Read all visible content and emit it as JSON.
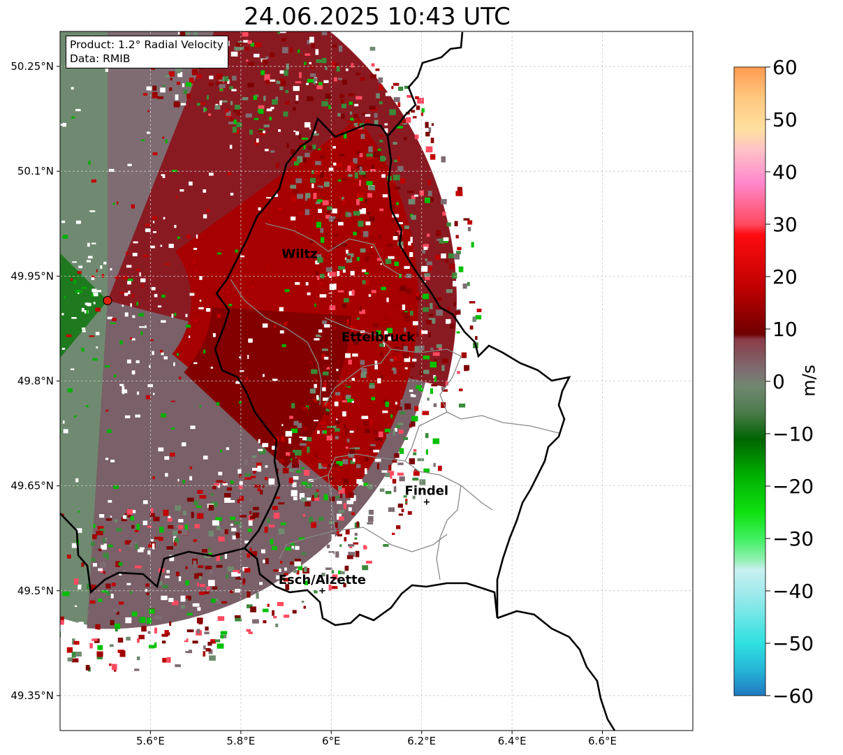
{
  "title": "24.06.2025 10:43 UTC",
  "info_box": {
    "product": "Product: 1.2° Radial Velocity",
    "source": "Data: RMIB"
  },
  "map": {
    "lon_ticks": [
      {
        "value": 5.6,
        "label": "5.6°E"
      },
      {
        "value": 5.8,
        "label": "5.8°E"
      },
      {
        "value": 6.0,
        "label": "6°E"
      },
      {
        "value": 6.2,
        "label": "6.2°E"
      },
      {
        "value": 6.4,
        "label": "6.4°E"
      },
      {
        "value": 6.6,
        "label": "6.6°E"
      }
    ],
    "lat_ticks": [
      {
        "value": 50.25,
        "label": "50.25°N"
      },
      {
        "value": 50.1,
        "label": "50.1°N"
      },
      {
        "value": 49.95,
        "label": "49.95°N"
      },
      {
        "value": 49.8,
        "label": "49.8°N"
      },
      {
        "value": 49.65,
        "label": "49.65°N"
      },
      {
        "value": 49.5,
        "label": "49.5°N"
      },
      {
        "value": 49.35,
        "label": "49.35°N"
      }
    ],
    "extent": {
      "lon_min": 5.4,
      "lon_max": 6.8,
      "lat_min": 49.3,
      "lat_max": 50.3
    },
    "grid": true,
    "radar_site": {
      "lon": 5.505,
      "lat": 49.915,
      "color": "#e02010"
    },
    "cities": [
      {
        "name": "Wiltz",
        "lon": 5.93,
        "lat": 49.966,
        "marker": false
      },
      {
        "name": "Ettelbruck",
        "lon": 6.104,
        "lat": 49.847,
        "marker": false
      },
      {
        "name": "Findel",
        "lon": 6.211,
        "lat": 49.627,
        "marker": true
      },
      {
        "name": "Esch/Alzette",
        "lon": 5.98,
        "lat": 49.5,
        "marker": true
      }
    ]
  },
  "colorbar": {
    "label": "m/s",
    "min": -60,
    "max": 60,
    "ticks": [
      60,
      50,
      40,
      30,
      20,
      10,
      0,
      -10,
      -20,
      -30,
      -40,
      -50,
      -60
    ],
    "tick_labels": [
      "60",
      "50",
      "40",
      "30",
      "20",
      "10",
      "0",
      "−10",
      "−20",
      "−30",
      "−40",
      "−50",
      "−60"
    ],
    "stops": [
      {
        "v": -60,
        "c": "#1f78c0"
      },
      {
        "v": -55,
        "c": "#26b6d8"
      },
      {
        "v": -50,
        "c": "#2ee0e0"
      },
      {
        "v": -42,
        "c": "#90e8ea"
      },
      {
        "v": -36,
        "c": "#c8f0f0"
      },
      {
        "v": -34,
        "c": "#90f0b0"
      },
      {
        "v": -30,
        "c": "#40f060"
      },
      {
        "v": -25,
        "c": "#10e010"
      },
      {
        "v": -18,
        "c": "#00b000"
      },
      {
        "v": -11,
        "c": "#006400"
      },
      {
        "v": -6,
        "c": "#4a7a4a"
      },
      {
        "v": -1,
        "c": "#708870"
      },
      {
        "v": 2,
        "c": "#7d6e72"
      },
      {
        "v": 8,
        "c": "#8a3c48"
      },
      {
        "v": 9,
        "c": "#700000"
      },
      {
        "v": 18,
        "c": "#c00000"
      },
      {
        "v": 28,
        "c": "#ff0c10"
      },
      {
        "v": 30,
        "c": "#ff4a60"
      },
      {
        "v": 38,
        "c": "#ff88cc"
      },
      {
        "v": 44,
        "c": "#ffc0c8"
      },
      {
        "v": 48,
        "c": "#ffe0a0"
      },
      {
        "v": 54,
        "c": "#ffc880"
      },
      {
        "v": 60,
        "c": "#ff9a50"
      }
    ]
  }
}
